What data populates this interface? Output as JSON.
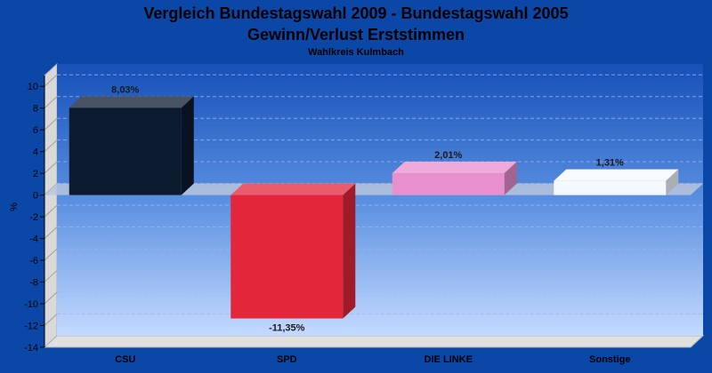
{
  "chart_data": {
    "type": "bar",
    "title": "Vergleich Bundestagswahl 2009 - Bundestagswahl 2005",
    "title_line2": "Gewinn/Verlust Erststimmen",
    "subtitle": "Wahlkreis Kulmbach",
    "ylabel": "%",
    "xlabel": "",
    "ylim": [
      -14,
      11
    ],
    "yticks": [
      "10",
      "8",
      "6",
      "4",
      "2",
      "0",
      "-2",
      "-4",
      "-6",
      "-8",
      "-10",
      "-12",
      "-14"
    ],
    "categories": [
      "CSU",
      "SPD",
      "DIE LINKE",
      "Sonstige"
    ],
    "values": [
      8.03,
      -11.35,
      2.01,
      1.31
    ],
    "value_labels": [
      "8,03%",
      "-11,35%",
      "2,01%",
      "1,31%"
    ],
    "colors": [
      "#0c1a2e",
      "#e3263a",
      "#e88fce",
      "#f4f8ff"
    ],
    "grid": true,
    "legend": "none"
  }
}
